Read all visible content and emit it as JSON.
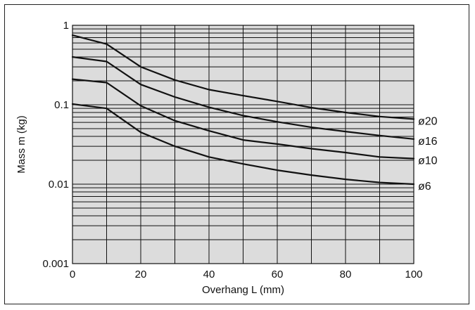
{
  "chart_data": {
    "type": "line",
    "xlabel": "Overhang L (mm)",
    "ylabel": "Mass m (kg)",
    "xlim": [
      0,
      100
    ],
    "ylim": [
      0.001,
      1
    ],
    "yscale": "log",
    "grid": true,
    "background_color": "#dcdcdc",
    "line_color": "#111111",
    "x_ticks": [
      0,
      20,
      40,
      60,
      80,
      100
    ],
    "x_tick_labels": [
      "0",
      "20",
      "40",
      "60",
      "80",
      "100"
    ],
    "y_ticks": [
      0.001,
      0.01,
      0.1,
      1
    ],
    "y_tick_labels": [
      "0.001",
      "0.01",
      "0.1",
      "1"
    ],
    "x": [
      0,
      10,
      20,
      30,
      40,
      50,
      60,
      70,
      80,
      90,
      100
    ],
    "series": [
      {
        "name": "ø20",
        "values": [
          0.75,
          0.58,
          0.3,
          0.205,
          0.155,
          0.13,
          0.11,
          0.092,
          0.08,
          0.071,
          0.066
        ]
      },
      {
        "name": "ø16",
        "values": [
          0.4,
          0.35,
          0.18,
          0.125,
          0.093,
          0.073,
          0.061,
          0.052,
          0.046,
          0.041,
          0.037
        ]
      },
      {
        "name": "ø10",
        "values": [
          0.21,
          0.19,
          0.097,
          0.063,
          0.047,
          0.036,
          0.032,
          0.028,
          0.025,
          0.022,
          0.021
        ]
      },
      {
        "name": "ø6",
        "values": [
          0.102,
          0.09,
          0.045,
          0.03,
          0.022,
          0.018,
          0.015,
          0.013,
          0.0115,
          0.0105,
          0.01
        ]
      }
    ]
  }
}
